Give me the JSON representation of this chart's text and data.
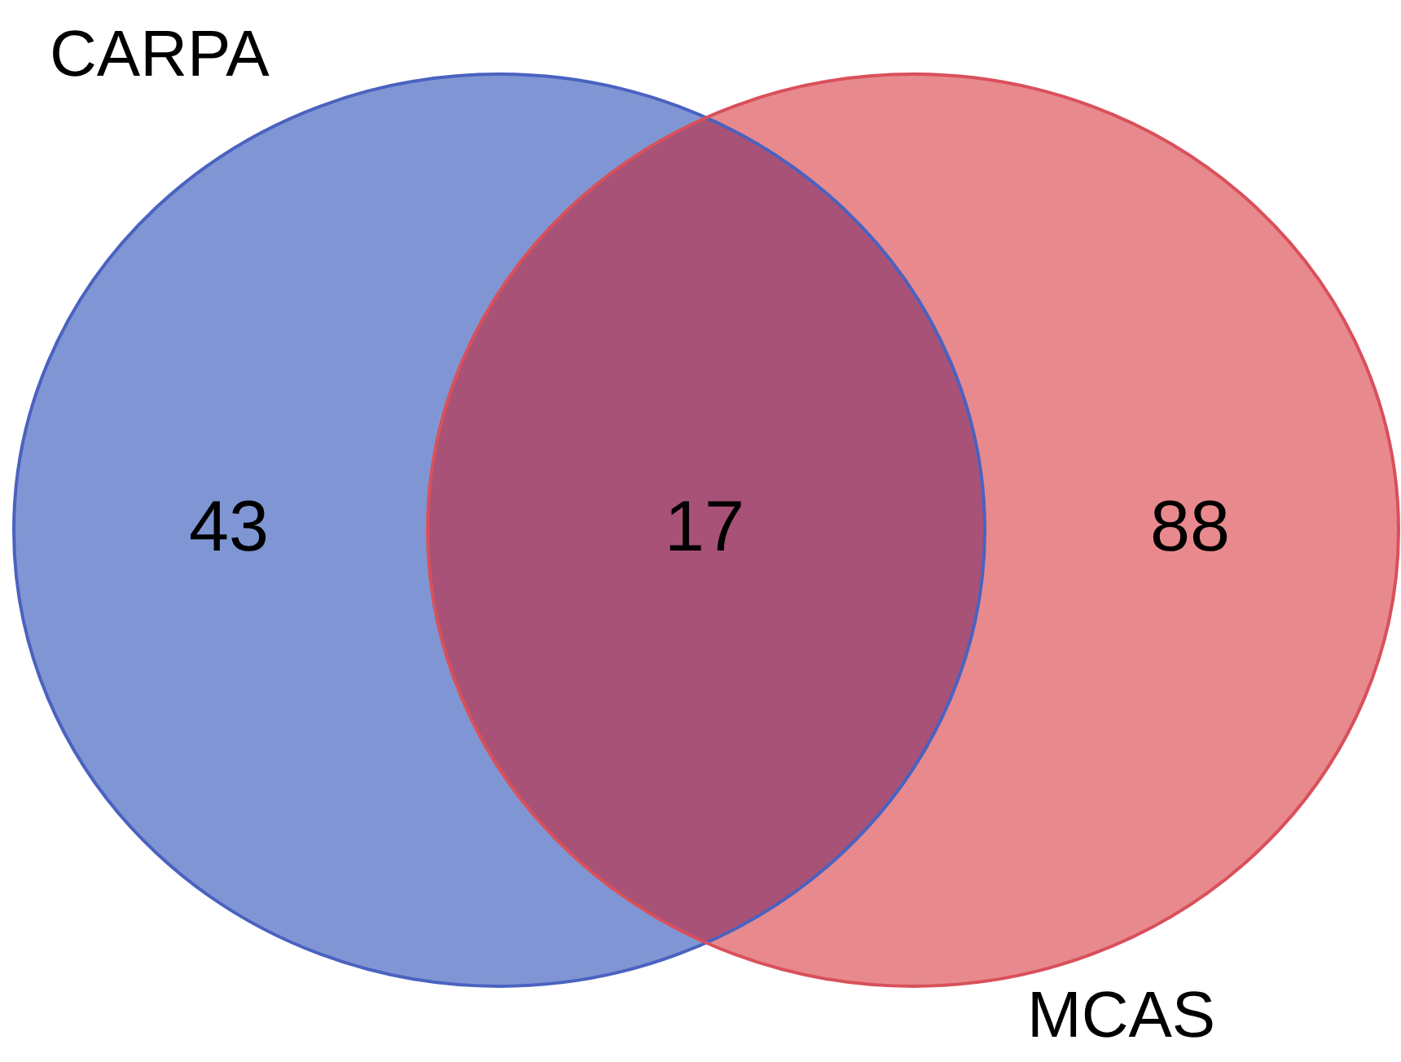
{
  "chart_data": {
    "type": "other",
    "categories": [
      null,
      null,
      null
    ],
    "values": [
      43,
      17,
      88
    ],
    "colors": [
      "#8096d4",
      "#a85278",
      "#e8898d"
    ],
    "annotations": [
      "CARPA",
      "MCAS"
    ],
    "data_labels": true
  }
}
